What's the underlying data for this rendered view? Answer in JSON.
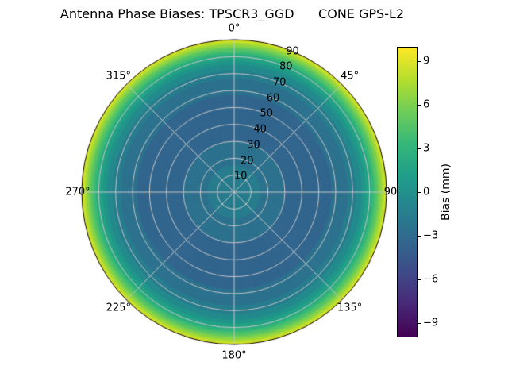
{
  "chart_data": {
    "type": "polar_contour_filled",
    "title": "Antenna Phase Biases: TPSCR3_GGD      CONE GPS-L2",
    "theta_tick_labels": [
      "0°",
      "45°",
      "90",
      "135°",
      "180°",
      "225°",
      "270°",
      "315°"
    ],
    "theta_angles_deg": [
      0,
      45,
      90,
      135,
      180,
      225,
      270,
      315
    ],
    "r_axis": {
      "ticks": [
        10,
        20,
        30,
        40,
        50,
        60,
        70,
        80,
        90
      ],
      "max": 90,
      "tick_label_angle_deg": 22.5
    },
    "radial_profile": {
      "comment_units": "zenith angle (deg) vs phase bias (mm), radially symmetric",
      "zenith_deg": [
        0,
        10,
        20,
        30,
        40,
        50,
        60,
        65,
        70,
        75,
        80,
        84,
        87,
        90
      ],
      "bias_mm": [
        -1.2,
        -1.6,
        -2.3,
        -3.0,
        -3.3,
        -3.3,
        -2.9,
        -2.4,
        -1.5,
        -0.2,
        2.0,
        4.5,
        6.8,
        9.2
      ]
    },
    "contour_level_step_mm": 1,
    "colorbar": {
      "label": "Bias (mm)",
      "min": -10,
      "max": 10,
      "tick_values": [
        9,
        6,
        3,
        0,
        -3,
        -6,
        -9
      ],
      "tick_labels": [
        "9",
        "6",
        "3",
        "0",
        "−3",
        "−6",
        "−9"
      ]
    },
    "colormap": {
      "name": "viridis",
      "stops": [
        "#440154",
        "#482878",
        "#3e4a89",
        "#31688e",
        "#26828e",
        "#1f9e89",
        "#35b779",
        "#6dcd59",
        "#b4de2c",
        "#fde725"
      ]
    },
    "grid_color": "#c6c6c6",
    "outline_color": "#000000",
    "background": "#ffffff"
  }
}
